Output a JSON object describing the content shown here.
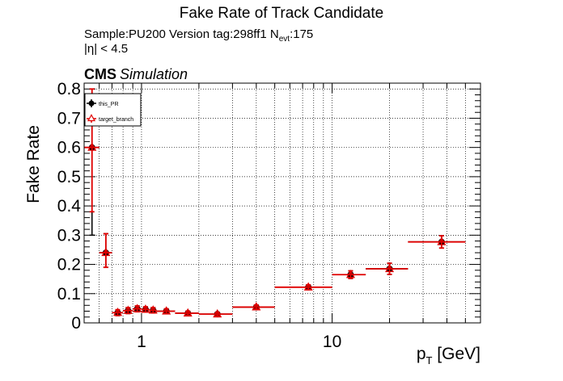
{
  "header": {
    "title": "Fake Rate of Track Candidate",
    "sample_line": "Sample:PU200   Version tag:298ff1  N",
    "nevt_sub": "evt",
    "nevt_value": ":175",
    "eta_line": "|η| < 4.5",
    "cms_label": "CMS",
    "sim_label": "Simulation"
  },
  "colors": {
    "this_pr": "#000000",
    "target_branch": "#e00000",
    "grid": "#000000"
  },
  "chart_data": {
    "type": "scatter",
    "title": "Fake Rate of Track Candidate",
    "ylabel": "Fake Rate",
    "xlabel_main": "p",
    "xlabel_sub": "T",
    "xlabel_unit": " [GeV]",
    "xscale": "log",
    "xlim": [
      0.5,
      60
    ],
    "ylim": [
      0,
      0.82
    ],
    "grid": true,
    "legend_position": "top-left",
    "xticks": [
      1,
      10
    ],
    "yticks": [
      0,
      0.1,
      0.2,
      0.3,
      0.4,
      0.5,
      0.6,
      0.7,
      0.8
    ],
    "series": [
      {
        "name": "this_PR",
        "marker": "circle",
        "points": [
          {
            "x": 0.55,
            "xlo": 0.5,
            "xhi": 0.6,
            "y": 0.6,
            "ylo": 0.3,
            "yhi": 0.8
          },
          {
            "x": 0.65,
            "xlo": 0.6,
            "xhi": 0.7,
            "y": 0.24,
            "ylo": 0.19,
            "yhi": 0.305
          },
          {
            "x": 0.75,
            "xlo": 0.7,
            "xhi": 0.8,
            "y": 0.035,
            "ylo": 0.025,
            "yhi": 0.045
          },
          {
            "x": 0.85,
            "xlo": 0.8,
            "xhi": 0.9,
            "y": 0.042,
            "ylo": 0.032,
            "yhi": 0.052
          },
          {
            "x": 0.95,
            "xlo": 0.9,
            "xhi": 1.0,
            "y": 0.048,
            "ylo": 0.038,
            "yhi": 0.058
          },
          {
            "x": 1.05,
            "xlo": 1.0,
            "xhi": 1.1,
            "y": 0.046,
            "ylo": 0.037,
            "yhi": 0.055
          },
          {
            "x": 1.15,
            "xlo": 1.1,
            "xhi": 1.2,
            "y": 0.043,
            "ylo": 0.034,
            "yhi": 0.052
          },
          {
            "x": 1.35,
            "xlo": 1.2,
            "xhi": 1.5,
            "y": 0.04,
            "ylo": 0.032,
            "yhi": 0.048
          },
          {
            "x": 1.75,
            "xlo": 1.5,
            "xhi": 2.0,
            "y": 0.033,
            "ylo": 0.026,
            "yhi": 0.04
          },
          {
            "x": 2.5,
            "xlo": 2.0,
            "xhi": 3.0,
            "y": 0.03,
            "ylo": 0.024,
            "yhi": 0.036
          },
          {
            "x": 4.0,
            "xlo": 3.0,
            "xhi": 5.0,
            "y": 0.054,
            "ylo": 0.047,
            "yhi": 0.061
          },
          {
            "x": 7.5,
            "xlo": 5.0,
            "xhi": 10.0,
            "y": 0.122,
            "ylo": 0.114,
            "yhi": 0.13
          },
          {
            "x": 12.5,
            "xlo": 10.0,
            "xhi": 15.0,
            "y": 0.165,
            "ylo": 0.152,
            "yhi": 0.178
          },
          {
            "x": 20.0,
            "xlo": 15.0,
            "xhi": 25.0,
            "y": 0.185,
            "ylo": 0.166,
            "yhi": 0.204
          },
          {
            "x": 37.5,
            "xlo": 25.0,
            "xhi": 50.0,
            "y": 0.277,
            "ylo": 0.256,
            "yhi": 0.298
          }
        ]
      },
      {
        "name": "target_branch",
        "marker": "triangle",
        "points": [
          {
            "x": 0.55,
            "xlo": 0.5,
            "xhi": 0.6,
            "y": 0.6,
            "ylo": 0.38,
            "yhi": 0.8
          },
          {
            "x": 0.65,
            "xlo": 0.6,
            "xhi": 0.7,
            "y": 0.24,
            "ylo": 0.19,
            "yhi": 0.305
          },
          {
            "x": 0.75,
            "xlo": 0.7,
            "xhi": 0.8,
            "y": 0.035,
            "ylo": 0.025,
            "yhi": 0.045
          },
          {
            "x": 0.85,
            "xlo": 0.8,
            "xhi": 0.9,
            "y": 0.042,
            "ylo": 0.032,
            "yhi": 0.052
          },
          {
            "x": 0.95,
            "xlo": 0.9,
            "xhi": 1.0,
            "y": 0.048,
            "ylo": 0.038,
            "yhi": 0.058
          },
          {
            "x": 1.05,
            "xlo": 1.0,
            "xhi": 1.1,
            "y": 0.046,
            "ylo": 0.037,
            "yhi": 0.055
          },
          {
            "x": 1.15,
            "xlo": 1.1,
            "xhi": 1.2,
            "y": 0.043,
            "ylo": 0.034,
            "yhi": 0.052
          },
          {
            "x": 1.35,
            "xlo": 1.2,
            "xhi": 1.5,
            "y": 0.04,
            "ylo": 0.032,
            "yhi": 0.048
          },
          {
            "x": 1.75,
            "xlo": 1.5,
            "xhi": 2.0,
            "y": 0.033,
            "ylo": 0.026,
            "yhi": 0.04
          },
          {
            "x": 2.5,
            "xlo": 2.0,
            "xhi": 3.0,
            "y": 0.03,
            "ylo": 0.024,
            "yhi": 0.036
          },
          {
            "x": 4.0,
            "xlo": 3.0,
            "xhi": 5.0,
            "y": 0.054,
            "ylo": 0.047,
            "yhi": 0.061
          },
          {
            "x": 7.5,
            "xlo": 5.0,
            "xhi": 10.0,
            "y": 0.122,
            "ylo": 0.114,
            "yhi": 0.13
          },
          {
            "x": 12.5,
            "xlo": 10.0,
            "xhi": 15.0,
            "y": 0.165,
            "ylo": 0.152,
            "yhi": 0.178
          },
          {
            "x": 20.0,
            "xlo": 15.0,
            "xhi": 25.0,
            "y": 0.185,
            "ylo": 0.166,
            "yhi": 0.204
          },
          {
            "x": 37.5,
            "xlo": 25.0,
            "xhi": 50.0,
            "y": 0.277,
            "ylo": 0.256,
            "yhi": 0.298
          }
        ]
      }
    ]
  }
}
